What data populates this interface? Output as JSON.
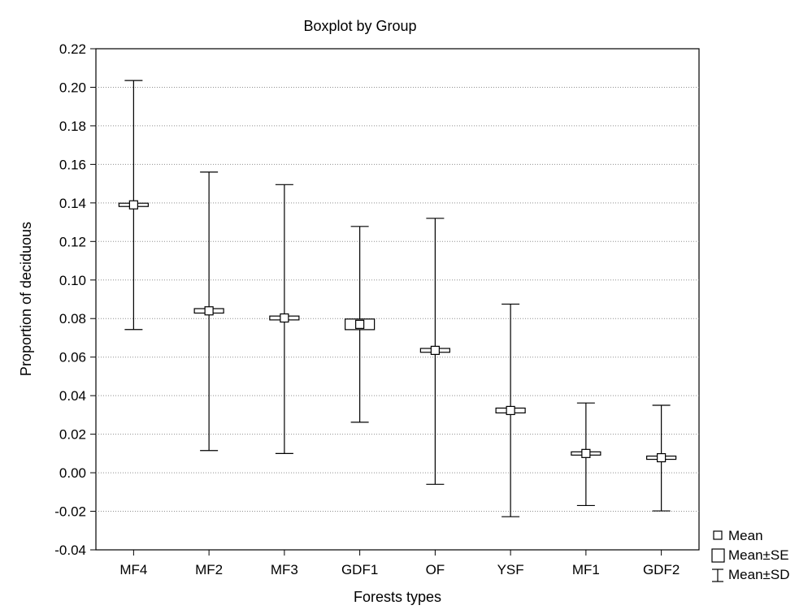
{
  "chart_data": {
    "type": "boxplot",
    "title": "Boxplot by Group",
    "xlabel": "Forests types",
    "ylabel": "Proportion of deciduous",
    "ylim": [
      -0.04,
      0.22
    ],
    "y_ticks": [
      0.22,
      0.2,
      0.18,
      0.16,
      0.14,
      0.12,
      0.1,
      0.08,
      0.06,
      0.04,
      0.02,
      0.0,
      -0.02,
      -0.04
    ],
    "y_tick_labels": [
      "0.22",
      "0.20",
      "0.18",
      "0.16",
      "0.14",
      "0.12",
      "0.10",
      "0.08",
      "0.06",
      "0.04",
      "0.02",
      "0.00",
      "-0.02",
      "-0.04"
    ],
    "grid": "horizontal-dotted",
    "legend_position": "right-bottom",
    "categories": [
      "MF4",
      "MF2",
      "MF3",
      "GDF1",
      "OF",
      "YSF",
      "MF1",
      "GDF2"
    ],
    "groups": [
      {
        "label": "MF4",
        "mean": 0.139,
        "se_low": 0.138,
        "se_high": 0.1397,
        "sd_low": 0.0743,
        "sd_high": 0.2035
      },
      {
        "label": "MF2",
        "mean": 0.084,
        "se_low": 0.083,
        "se_high": 0.0853,
        "sd_low": 0.0115,
        "sd_high": 0.156
      },
      {
        "label": "MF3",
        "mean": 0.0803,
        "se_low": 0.0791,
        "se_high": 0.0811,
        "sd_low": 0.01,
        "sd_high": 0.1495
      },
      {
        "label": "GDF1",
        "mean": 0.077,
        "se_low": 0.0742,
        "se_high": 0.0797,
        "sd_low": 0.0262,
        "sd_high": 0.1278
      },
      {
        "label": "OF",
        "mean": 0.0635,
        "se_low": 0.0625,
        "se_high": 0.0645,
        "sd_low": -0.006,
        "sd_high": 0.132
      },
      {
        "label": "YSF",
        "mean": 0.0323,
        "se_low": 0.031,
        "se_high": 0.0335,
        "sd_low": -0.0228,
        "sd_high": 0.0875
      },
      {
        "label": "MF1",
        "mean": 0.01,
        "se_low": 0.0092,
        "se_high": 0.0108,
        "sd_low": -0.017,
        "sd_high": 0.0362
      },
      {
        "label": "GDF2",
        "mean": 0.0078,
        "se_low": 0.007,
        "se_high": 0.0086,
        "sd_low": -0.0198,
        "sd_high": 0.035
      }
    ],
    "legend": [
      {
        "symbol": "mean",
        "label": "Mean"
      },
      {
        "symbol": "se",
        "label": "Mean±SE"
      },
      {
        "symbol": "sd",
        "label": "Mean±SD"
      }
    ]
  }
}
